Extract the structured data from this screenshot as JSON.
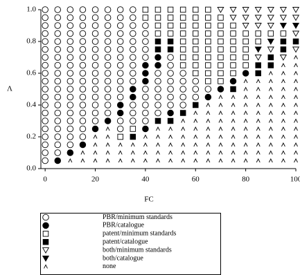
{
  "chart_data": {
    "type": "scatter",
    "x_label": "FC",
    "y_label": "Λ",
    "xlim": [
      -1.7,
      100
    ],
    "ylim": [
      0,
      1.0
    ],
    "xticks": [
      0,
      20,
      40,
      60,
      80,
      100
    ],
    "yticks": [
      {
        "value": 0,
        "label": "0.0"
      },
      0.2,
      0.4,
      0.6,
      0.8,
      {
        "value": 1.0,
        "label": "1.0"
      }
    ],
    "series": [
      {
        "name": "PBR/minimum standards",
        "color": "#000000",
        "marker": "circle",
        "filled": false,
        "x": [
          0,
          0,
          0,
          0,
          0,
          0,
          0,
          0,
          0,
          0,
          0,
          0,
          0,
          0,
          0,
          0,
          0,
          0,
          0,
          0,
          5,
          5,
          5,
          5,
          5,
          5,
          5,
          5,
          5,
          5,
          5,
          5,
          5,
          5,
          5,
          5,
          5,
          5,
          5,
          10,
          10,
          10,
          10,
          10,
          10,
          10,
          10,
          10,
          10,
          10,
          10,
          10,
          10,
          10,
          10,
          10,
          10,
          15,
          15,
          15,
          15,
          15,
          15,
          15,
          15,
          15,
          15,
          15,
          15,
          15,
          15,
          15,
          15,
          15,
          20,
          20,
          20,
          20,
          20,
          20,
          20,
          20,
          20,
          20,
          20,
          20,
          20,
          20,
          20,
          25,
          25,
          25,
          25,
          25,
          25,
          25,
          25,
          25,
          25,
          25,
          25,
          25,
          25,
          30,
          30,
          30,
          30,
          30,
          30,
          30,
          30,
          30,
          30,
          30,
          30,
          30,
          30,
          35,
          35,
          35,
          35,
          35,
          35,
          35,
          35,
          35,
          35,
          35,
          35,
          35,
          40,
          40,
          40,
          40,
          40,
          40,
          40,
          40,
          40,
          40,
          45,
          45,
          45,
          45,
          45,
          45,
          50,
          50,
          50,
          50,
          50,
          50,
          50,
          55,
          55,
          55,
          55,
          55,
          60,
          60,
          60,
          65
        ],
        "y": [
          0.05,
          0.1,
          0.15,
          0.2,
          0.25,
          0.3,
          0.35,
          0.4,
          0.45,
          0.5,
          0.55,
          0.6,
          0.65,
          0.7,
          0.75,
          0.8,
          0.85,
          0.9,
          0.95,
          1.0,
          0.1,
          0.15,
          0.2,
          0.25,
          0.3,
          0.35,
          0.4,
          0.45,
          0.5,
          0.55,
          0.6,
          0.65,
          0.7,
          0.75,
          0.8,
          0.85,
          0.9,
          0.95,
          1.0,
          0.15,
          0.2,
          0.25,
          0.3,
          0.35,
          0.4,
          0.45,
          0.5,
          0.55,
          0.6,
          0.65,
          0.7,
          0.75,
          0.8,
          0.85,
          0.9,
          0.95,
          1.0,
          0.2,
          0.25,
          0.3,
          0.35,
          0.4,
          0.45,
          0.5,
          0.55,
          0.6,
          0.65,
          0.7,
          0.75,
          0.8,
          0.85,
          0.9,
          0.95,
          1.0,
          0.3,
          0.35,
          0.4,
          0.45,
          0.5,
          0.55,
          0.6,
          0.65,
          0.7,
          0.75,
          0.8,
          0.85,
          0.9,
          0.95,
          1.0,
          0.35,
          0.4,
          0.45,
          0.5,
          0.55,
          0.6,
          0.65,
          0.7,
          0.75,
          0.8,
          0.85,
          0.9,
          0.95,
          1.0,
          0.25,
          0.3,
          0.45,
          0.5,
          0.55,
          0.6,
          0.65,
          0.7,
          0.75,
          0.8,
          0.85,
          0.9,
          0.95,
          1.0,
          0.3,
          0.35,
          0.4,
          0.55,
          0.6,
          0.65,
          0.7,
          0.75,
          0.8,
          0.85,
          0.9,
          0.95,
          1.0,
          0.3,
          0.35,
          0.4,
          0.45,
          0.5,
          0.7,
          0.75,
          0.8,
          0.85,
          0.9,
          0.35,
          0.4,
          0.45,
          0.5,
          0.55,
          0.6,
          0.4,
          0.45,
          0.5,
          0.55,
          0.6,
          0.65,
          0.7,
          0.4,
          0.45,
          0.5,
          0.55,
          0.6,
          0.45,
          0.5,
          0.55,
          0.5
        ]
      },
      {
        "name": "PBR/catalogue",
        "color": "#000000",
        "marker": "circle",
        "filled": true,
        "x": [
          5,
          10,
          15,
          20,
          25,
          30,
          30,
          35,
          35,
          40,
          40,
          40,
          40,
          45,
          45,
          50,
          65,
          70,
          75,
          80
        ],
        "y": [
          0.05,
          0.1,
          0.15,
          0.25,
          0.3,
          0.35,
          0.4,
          0.45,
          0.5,
          0.25,
          0.55,
          0.6,
          0.65,
          0.65,
          0.7,
          0.35,
          0.45,
          0.5,
          0.55,
          0.6
        ]
      },
      {
        "name": "patent/minimum standards",
        "color": "#000000",
        "marker": "square",
        "filled": false,
        "x": [
          30,
          35,
          40,
          40,
          45,
          45,
          45,
          45,
          50,
          50,
          50,
          50,
          55,
          55,
          55,
          55,
          55,
          55,
          55,
          55,
          60,
          60,
          60,
          60,
          60,
          60,
          60,
          60,
          60,
          65,
          65,
          65,
          65,
          65,
          65,
          65,
          65,
          65,
          65,
          70,
          70,
          70,
          70,
          70,
          70,
          70,
          70,
          70,
          75,
          75,
          75,
          75,
          75,
          75,
          75,
          80,
          80,
          80,
          80,
          80,
          85,
          85,
          90,
          95
        ],
        "y": [
          0.2,
          0.25,
          0.95,
          1.0,
          0.85,
          0.9,
          0.95,
          1.0,
          0.85,
          0.9,
          0.95,
          1.0,
          0.65,
          0.7,
          0.75,
          0.8,
          0.85,
          0.9,
          0.95,
          1.0,
          0.6,
          0.65,
          0.7,
          0.75,
          0.8,
          0.85,
          0.9,
          0.95,
          1.0,
          0.55,
          0.6,
          0.65,
          0.7,
          0.75,
          0.8,
          0.85,
          0.9,
          0.95,
          1.0,
          0.55,
          0.6,
          0.65,
          0.7,
          0.75,
          0.8,
          0.85,
          0.9,
          0.95,
          0.6,
          0.65,
          0.7,
          0.75,
          0.8,
          0.85,
          0.9,
          0.65,
          0.7,
          0.75,
          0.8,
          0.85,
          0.8,
          0.85,
          0.85,
          0.85
        ]
      },
      {
        "name": "patent/catalogue",
        "color": "#000000",
        "marker": "square",
        "filled": true,
        "x": [
          35,
          45,
          45,
          45,
          50,
          50,
          50,
          55,
          60,
          75,
          85,
          85,
          90,
          90,
          95,
          95,
          100
        ],
        "y": [
          0.2,
          0.3,
          0.75,
          0.8,
          0.3,
          0.75,
          0.8,
          0.35,
          0.4,
          0.5,
          0.6,
          0.65,
          0.65,
          0.7,
          0.75,
          0.8,
          0.8
        ]
      },
      {
        "name": "both/minimum standards",
        "color": "#000000",
        "marker": "triangle",
        "filled": false,
        "x": [
          70,
          75,
          75,
          80,
          80,
          80,
          85,
          85,
          85,
          85,
          90,
          90,
          90,
          90,
          95,
          95,
          95,
          100,
          100,
          100,
          100
        ],
        "y": [
          1.0,
          0.95,
          1.0,
          0.9,
          0.95,
          1.0,
          0.7,
          0.9,
          0.95,
          1.0,
          0.75,
          0.9,
          0.95,
          1.0,
          0.7,
          0.95,
          1.0,
          0.75,
          0.85,
          0.95,
          1.0
        ]
      },
      {
        "name": "both/catalogue",
        "color": "#000000",
        "marker": "triangle",
        "filled": true,
        "x": [
          85,
          90,
          95,
          100
        ],
        "y": [
          0.75,
          0.8,
          0.9,
          0.9
        ]
      },
      {
        "name": "none",
        "color": "#000000",
        "marker": "caret",
        "filled": false,
        "x": [
          10,
          15,
          15,
          20,
          20,
          20,
          20,
          25,
          25,
          25,
          25,
          25,
          30,
          30,
          30,
          35,
          35,
          35,
          40,
          40,
          40,
          40,
          45,
          45,
          45,
          45,
          45,
          50,
          50,
          50,
          50,
          50,
          55,
          55,
          55,
          55,
          55,
          55,
          60,
          60,
          60,
          60,
          60,
          60,
          60,
          65,
          65,
          65,
          65,
          65,
          65,
          65,
          65,
          70,
          70,
          70,
          70,
          70,
          70,
          70,
          70,
          70,
          75,
          75,
          75,
          75,
          75,
          75,
          75,
          75,
          75,
          80,
          80,
          80,
          80,
          80,
          80,
          80,
          80,
          80,
          80,
          80,
          85,
          85,
          85,
          85,
          85,
          85,
          85,
          85,
          85,
          85,
          85,
          90,
          90,
          90,
          90,
          90,
          90,
          90,
          90,
          90,
          90,
          90,
          90,
          95,
          95,
          95,
          95,
          95,
          95,
          95,
          95,
          95,
          95,
          95,
          95,
          95,
          100,
          100,
          100,
          100,
          100,
          100,
          100,
          100,
          100,
          100,
          100,
          100,
          100,
          100
        ],
        "y": [
          0.05,
          0.05,
          0.1,
          0.05,
          0.1,
          0.15,
          0.2,
          0.05,
          0.1,
          0.15,
          0.2,
          0.25,
          0.05,
          0.1,
          0.15,
          0.05,
          0.1,
          0.15,
          0.05,
          0.1,
          0.15,
          0.2,
          0.05,
          0.1,
          0.15,
          0.2,
          0.25,
          0.05,
          0.1,
          0.15,
          0.2,
          0.25,
          0.05,
          0.1,
          0.15,
          0.2,
          0.25,
          0.3,
          0.05,
          0.1,
          0.15,
          0.2,
          0.25,
          0.3,
          0.35,
          0.05,
          0.1,
          0.15,
          0.2,
          0.25,
          0.3,
          0.35,
          0.4,
          0.05,
          0.1,
          0.15,
          0.2,
          0.25,
          0.3,
          0.35,
          0.4,
          0.45,
          0.05,
          0.1,
          0.15,
          0.2,
          0.25,
          0.3,
          0.35,
          0.4,
          0.45,
          0.05,
          0.1,
          0.15,
          0.2,
          0.25,
          0.3,
          0.35,
          0.4,
          0.45,
          0.5,
          0.55,
          0.05,
          0.1,
          0.15,
          0.2,
          0.25,
          0.3,
          0.35,
          0.4,
          0.45,
          0.5,
          0.55,
          0.05,
          0.1,
          0.15,
          0.2,
          0.25,
          0.3,
          0.35,
          0.4,
          0.45,
          0.5,
          0.55,
          0.6,
          0.05,
          0.1,
          0.15,
          0.2,
          0.25,
          0.3,
          0.35,
          0.4,
          0.45,
          0.5,
          0.55,
          0.6,
          0.65,
          0.05,
          0.1,
          0.15,
          0.2,
          0.25,
          0.3,
          0.35,
          0.4,
          0.45,
          0.5,
          0.55,
          0.6,
          0.65,
          0.7
        ]
      }
    ]
  }
}
